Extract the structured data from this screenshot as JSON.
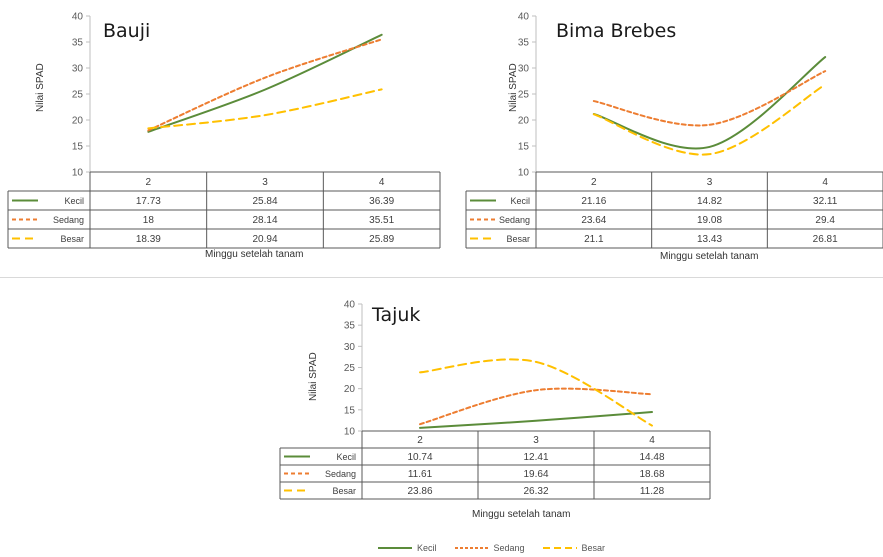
{
  "colors": {
    "Kecil": "#5b8c3a",
    "Sedang": "#ed7d31",
    "Besar": "#ffc000"
  },
  "legend": {
    "items": [
      "Kecil",
      "Sedang",
      "Besar"
    ]
  },
  "panels": [
    {
      "title": "Bauji",
      "ylabel": "Nilai  SPAD",
      "xlabel": "Minggu setelah tanam"
    },
    {
      "title": "Bima Brebes",
      "ylabel": "Nilai  SPAD",
      "xlabel": "Minggu setelah tanam"
    },
    {
      "title": "Tajuk",
      "ylabel": "Nilai SPAD",
      "xlabel": "Minggu  setelah tanam"
    }
  ],
  "chart_data": [
    {
      "type": "line",
      "title": "Bauji",
      "xlabel": "Minggu setelah tanam",
      "ylabel": "Nilai  SPAD",
      "categories": [
        "2",
        "3",
        "4"
      ],
      "ylim": [
        10,
        40
      ],
      "yticks": [
        10,
        15,
        20,
        25,
        30,
        35,
        40
      ],
      "series": [
        {
          "name": "Kecil",
          "values": [
            17.73,
            25.84,
            36.39
          ],
          "labels": [
            "17.73",
            "25.84",
            "36.39"
          ]
        },
        {
          "name": "Sedang",
          "values": [
            18,
            28.14,
            35.51
          ],
          "labels": [
            "18",
            "28.14",
            "35.51"
          ]
        },
        {
          "name": "Besar",
          "values": [
            18.39,
            20.94,
            25.89
          ],
          "labels": [
            "18.39",
            "20.94",
            "25.89"
          ]
        }
      ]
    },
    {
      "type": "line",
      "title": "Bima Brebes",
      "xlabel": "Minggu setelah tanam",
      "ylabel": "Nilai  SPAD",
      "categories": [
        "2",
        "3",
        "4"
      ],
      "ylim": [
        10,
        40
      ],
      "yticks": [
        10,
        15,
        20,
        25,
        30,
        35,
        40
      ],
      "series": [
        {
          "name": "Kecil",
          "values": [
            21.16,
            14.82,
            32.11
          ],
          "labels": [
            "21.16",
            "14.82",
            "32.11"
          ]
        },
        {
          "name": "Sedang",
          "values": [
            23.64,
            19.08,
            29.4
          ],
          "labels": [
            "23.64",
            "19.08",
            "29.4"
          ]
        },
        {
          "name": "Besar",
          "values": [
            21.1,
            13.43,
            26.81
          ],
          "labels": [
            "21.1",
            "13.43",
            "26.81"
          ]
        }
      ]
    },
    {
      "type": "line",
      "title": "Tajuk",
      "xlabel": "Minggu  setelah tanam",
      "ylabel": "Nilai SPAD",
      "categories": [
        "2",
        "3",
        "4"
      ],
      "ylim": [
        10,
        40
      ],
      "yticks": [
        10,
        15,
        20,
        25,
        30,
        35,
        40
      ],
      "series": [
        {
          "name": "Kecil",
          "values": [
            10.74,
            12.41,
            14.48
          ],
          "labels": [
            "10.74",
            "12.41",
            "14.48"
          ]
        },
        {
          "name": "Sedang",
          "values": [
            11.61,
            19.64,
            18.68
          ],
          "labels": [
            "11.61",
            "19.64",
            "18.68"
          ]
        },
        {
          "name": "Besar",
          "values": [
            23.86,
            26.32,
            11.28
          ],
          "labels": [
            "23.86",
            "26.32",
            "11.28"
          ]
        }
      ]
    }
  ]
}
